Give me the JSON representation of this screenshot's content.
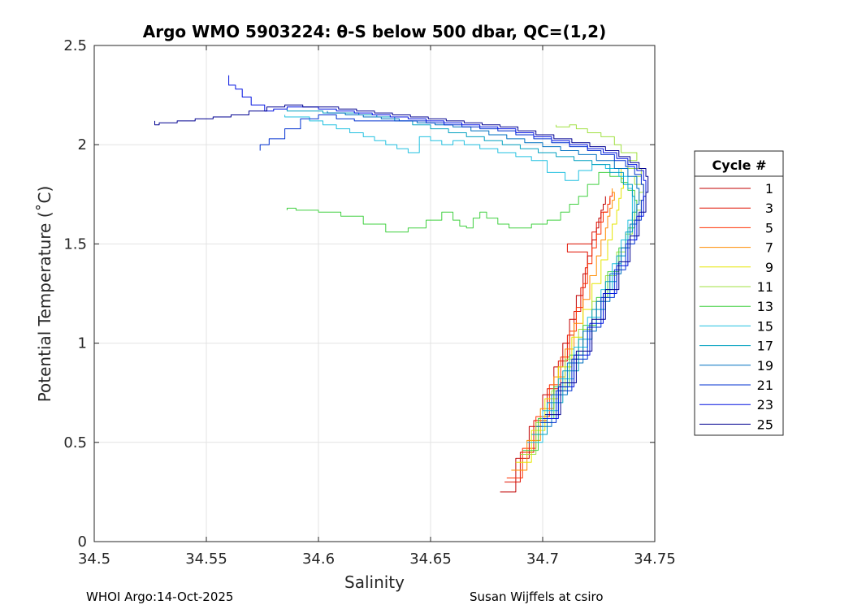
{
  "chart_data": {
    "type": "line",
    "title": "Argo WMO 5903224: θ-S below 500 dbar,  QC=(1,2)",
    "xlabel": "Salinity",
    "ylabel": "Potential Temperature (˚C)",
    "xlim": [
      34.5,
      34.75
    ],
    "ylim": [
      0,
      2.5
    ],
    "xticks": [
      34.5,
      34.55,
      34.6,
      34.65,
      34.7,
      34.75
    ],
    "xtick_labels": [
      "34.5",
      "34.55",
      "34.6",
      "34.65",
      "34.7",
      "34.75"
    ],
    "yticks": [
      0,
      0.5,
      1,
      1.5,
      2,
      2.5
    ],
    "ytick_labels": [
      "0",
      "0.5",
      "1",
      "1.5",
      "2",
      "2.5"
    ],
    "grid": true,
    "legend_title": "Cycle #",
    "legend_position": "outside-right",
    "series": [
      {
        "name": "1",
        "color": "#c00000",
        "x": [
          34.681,
          34.688,
          34.694,
          34.7,
          34.705,
          34.709,
          34.712,
          34.715,
          34.718,
          34.72,
          34.722,
          34.724,
          34.725,
          34.726,
          34.727,
          34.728,
          34.728
        ],
        "y": [
          0.25,
          0.42,
          0.58,
          0.74,
          0.88,
          1.0,
          1.12,
          1.24,
          1.35,
          1.44,
          1.52,
          1.58,
          1.63,
          1.67,
          1.7,
          1.72,
          1.74
        ]
      },
      {
        "name": "3",
        "color": "#e01000",
        "x": [
          34.683,
          34.69,
          34.696,
          34.702,
          34.707,
          34.711,
          34.714,
          34.717,
          34.719,
          34.72,
          34.711,
          34.722,
          34.724,
          34.726,
          34.729,
          34.73
        ],
        "y": [
          0.3,
          0.45,
          0.61,
          0.77,
          0.91,
          1.04,
          1.16,
          1.28,
          1.38,
          1.46,
          1.5,
          1.56,
          1.61,
          1.66,
          1.7,
          1.73
        ]
      },
      {
        "name": "5",
        "color": "#ff3000",
        "x": [
          34.684,
          34.691,
          34.697,
          34.703,
          34.708,
          34.712,
          34.715,
          34.718,
          34.72,
          34.722,
          34.724,
          34.726,
          34.727,
          34.729,
          34.73,
          34.731
        ],
        "y": [
          0.32,
          0.47,
          0.63,
          0.79,
          0.93,
          1.06,
          1.18,
          1.3,
          1.4,
          1.48,
          1.55,
          1.61,
          1.66,
          1.7,
          1.74,
          1.76
        ]
      },
      {
        "name": "7",
        "color": "#ff8c00",
        "x": [
          34.686,
          34.693,
          34.699,
          34.705,
          34.71,
          34.714,
          34.718,
          34.721,
          34.724,
          34.726,
          34.728,
          34.729,
          34.73,
          34.731,
          34.732,
          34.731
        ],
        "y": [
          0.36,
          0.51,
          0.67,
          0.83,
          0.97,
          1.1,
          1.22,
          1.34,
          1.44,
          1.52,
          1.58,
          1.64,
          1.68,
          1.72,
          1.76,
          1.78
        ]
      },
      {
        "name": "9",
        "color": "#e6e600",
        "x": [
          34.688,
          34.695,
          34.701,
          34.707,
          34.713,
          34.718,
          34.722,
          34.726,
          34.729,
          34.731,
          34.733,
          34.734,
          34.735,
          34.736,
          34.735
        ],
        "y": [
          0.4,
          0.56,
          0.72,
          0.88,
          1.03,
          1.17,
          1.3,
          1.42,
          1.52,
          1.6,
          1.67,
          1.73,
          1.78,
          1.83,
          1.88
        ]
      },
      {
        "name": "11",
        "color": "#a0e040",
        "x": [
          34.69,
          34.697,
          34.704,
          34.71,
          34.716,
          34.722,
          34.728,
          34.733,
          34.737,
          34.74,
          34.742,
          34.744,
          34.743,
          34.745,
          34.741,
          34.744,
          34.738,
          34.742,
          34.735,
          34.732,
          34.726,
          34.72,
          34.715,
          34.712,
          34.706
        ],
        "y": [
          0.44,
          0.6,
          0.76,
          0.92,
          1.07,
          1.21,
          1.34,
          1.46,
          1.55,
          1.62,
          1.67,
          1.72,
          1.76,
          1.8,
          1.84,
          1.88,
          1.92,
          1.96,
          2.0,
          2.04,
          2.06,
          2.08,
          2.1,
          2.09,
          2.1
        ]
      },
      {
        "name": "13",
        "color": "#40d040",
        "x": [
          34.691,
          34.698,
          34.705,
          34.712,
          34.718,
          34.724,
          34.729,
          34.734,
          34.738,
          34.741,
          34.742,
          34.741,
          34.738,
          34.735,
          34.73,
          34.725,
          34.72,
          34.716,
          34.712,
          34.708,
          34.702,
          34.695,
          34.69,
          34.685,
          34.68,
          34.675,
          34.672,
          34.669,
          34.666,
          34.663,
          34.66,
          34.655,
          34.648,
          34.64,
          34.63,
          34.62,
          34.61,
          34.6,
          34.59,
          34.586
        ],
        "y": [
          0.46,
          0.62,
          0.78,
          0.94,
          1.09,
          1.23,
          1.36,
          1.48,
          1.58,
          1.66,
          1.72,
          1.77,
          1.81,
          1.84,
          1.86,
          1.8,
          1.74,
          1.7,
          1.66,
          1.62,
          1.6,
          1.58,
          1.58,
          1.6,
          1.63,
          1.66,
          1.63,
          1.58,
          1.59,
          1.62,
          1.66,
          1.62,
          1.58,
          1.56,
          1.6,
          1.64,
          1.66,
          1.67,
          1.68,
          1.67
        ]
      },
      {
        "name": "15",
        "color": "#20c0e0",
        "x": [
          34.693,
          34.7,
          34.707,
          34.714,
          34.72,
          34.726,
          34.731,
          34.735,
          34.738,
          34.74,
          34.74,
          34.738,
          34.734,
          34.728,
          34.722,
          34.716,
          34.71,
          34.702,
          34.695,
          34.688,
          34.68,
          34.672,
          34.665,
          34.66,
          34.655,
          34.65,
          34.645,
          34.64,
          34.635,
          34.63,
          34.625,
          34.62,
          34.614,
          34.608,
          34.602,
          34.596,
          34.59,
          34.585
        ],
        "y": [
          0.5,
          0.66,
          0.82,
          0.98,
          1.13,
          1.27,
          1.4,
          1.52,
          1.62,
          1.7,
          1.78,
          1.84,
          1.88,
          1.9,
          1.87,
          1.82,
          1.86,
          1.92,
          1.94,
          1.96,
          1.98,
          2.0,
          2.02,
          2.0,
          2.02,
          2.04,
          1.96,
          1.98,
          2.0,
          2.02,
          2.04,
          2.06,
          2.08,
          2.1,
          2.12,
          2.14,
          2.14,
          2.15
        ]
      },
      {
        "name": "17",
        "color": "#00a0c0",
        "x": [
          34.695,
          34.702,
          34.709,
          34.716,
          34.722,
          34.728,
          34.733,
          34.737,
          34.74,
          34.741,
          34.74,
          34.736,
          34.73,
          34.722,
          34.714,
          34.706,
          34.698,
          34.69,
          34.682,
          34.674,
          34.666,
          34.658,
          34.65,
          34.642,
          34.634,
          34.626,
          34.618,
          34.61,
          34.602,
          34.594,
          34.586
        ],
        "y": [
          0.54,
          0.7,
          0.86,
          1.02,
          1.17,
          1.31,
          1.44,
          1.56,
          1.66,
          1.74,
          1.8,
          1.86,
          1.9,
          1.92,
          1.94,
          1.96,
          1.98,
          2.0,
          2.02,
          2.04,
          2.06,
          2.08,
          2.1,
          2.12,
          2.14,
          2.15,
          2.16,
          2.16,
          2.17,
          2.17,
          2.18
        ]
      },
      {
        "name": "19",
        "color": "#0070c0",
        "x": [
          34.697,
          34.704,
          34.711,
          34.718,
          34.724,
          34.73,
          34.735,
          34.739,
          34.742,
          34.743,
          34.742,
          34.738,
          34.732,
          34.724,
          34.716,
          34.708,
          34.7,
          34.692,
          34.684,
          34.676,
          34.668,
          34.66,
          34.652,
          34.644,
          34.636,
          34.628,
          34.62,
          34.612,
          34.604
        ],
        "y": [
          0.58,
          0.74,
          0.9,
          1.06,
          1.21,
          1.35,
          1.48,
          1.6,
          1.7,
          1.78,
          1.84,
          1.88,
          1.92,
          1.95,
          1.97,
          1.99,
          2.01,
          2.03,
          2.05,
          2.07,
          2.09,
          2.1,
          2.11,
          2.12,
          2.13,
          2.14,
          2.15,
          2.16,
          2.17
        ]
      },
      {
        "name": "21",
        "color": "#0030d0",
        "x": [
          34.699,
          34.706,
          34.713,
          34.72,
          34.726,
          34.732,
          34.737,
          34.741,
          34.744,
          34.745,
          34.744,
          34.741,
          34.737,
          34.732,
          34.726,
          34.72,
          34.712,
          34.704,
          34.696,
          34.688,
          34.68,
          34.672,
          34.664,
          34.656,
          34.648,
          34.64,
          34.632,
          34.624,
          34.616,
          34.608,
          34.6,
          34.592,
          34.585,
          34.578,
          34.574
        ],
        "y": [
          0.6,
          0.76,
          0.92,
          1.08,
          1.23,
          1.37,
          1.5,
          1.62,
          1.72,
          1.8,
          1.85,
          1.89,
          1.92,
          1.95,
          1.97,
          1.99,
          2.01,
          2.03,
          2.05,
          2.07,
          2.08,
          2.09,
          2.1,
          2.11,
          2.12,
          2.12,
          2.12,
          2.12,
          2.13,
          2.15,
          2.13,
          2.08,
          2.03,
          2.0,
          1.97
        ]
      },
      {
        "name": "23",
        "color": "#0010e0",
        "x": [
          34.7,
          34.707,
          34.714,
          34.721,
          34.727,
          34.733,
          34.738,
          34.742,
          34.745,
          34.746,
          34.745,
          34.742,
          34.738,
          34.733,
          34.727,
          34.72,
          34.712,
          34.704,
          34.696,
          34.688,
          34.68,
          34.672,
          34.664,
          34.656,
          34.648,
          34.64,
          34.632,
          34.624,
          34.616,
          34.608,
          34.6,
          34.592,
          34.586,
          34.58,
          34.576,
          34.57,
          34.566,
          34.563,
          34.56
        ],
        "y": [
          0.62,
          0.78,
          0.94,
          1.1,
          1.25,
          1.39,
          1.52,
          1.64,
          1.74,
          1.82,
          1.87,
          1.9,
          1.93,
          1.96,
          1.98,
          2.0,
          2.02,
          2.04,
          2.06,
          2.08,
          2.09,
          2.1,
          2.11,
          2.12,
          2.13,
          2.14,
          2.15,
          2.16,
          2.17,
          2.18,
          2.19,
          2.19,
          2.18,
          2.17,
          2.2,
          2.24,
          2.28,
          2.3,
          2.35
        ]
      },
      {
        "name": "25",
        "color": "#000090",
        "x": [
          34.701,
          34.708,
          34.715,
          34.722,
          34.728,
          34.734,
          34.739,
          34.743,
          34.746,
          34.747,
          34.746,
          34.743,
          34.739,
          34.734,
          34.728,
          34.721,
          34.713,
          34.705,
          34.697,
          34.689,
          34.681,
          34.673,
          34.665,
          34.657,
          34.649,
          34.641,
          34.633,
          34.625,
          34.617,
          34.609,
          34.601,
          34.593,
          34.585,
          34.577,
          34.569,
          34.561,
          34.553,
          34.545,
          34.537,
          34.529,
          34.527
        ],
        "y": [
          0.64,
          0.8,
          0.96,
          1.12,
          1.27,
          1.41,
          1.54,
          1.66,
          1.76,
          1.84,
          1.88,
          1.91,
          1.94,
          1.97,
          1.99,
          2.01,
          2.03,
          2.05,
          2.07,
          2.09,
          2.1,
          2.11,
          2.12,
          2.13,
          2.14,
          2.15,
          2.16,
          2.17,
          2.18,
          2.19,
          2.19,
          2.2,
          2.19,
          2.17,
          2.15,
          2.14,
          2.13,
          2.12,
          2.11,
          2.1,
          2.12
        ]
      }
    ]
  },
  "footer": {
    "left": "WHOI Argo:14-Oct-2025",
    "right": "Susan Wijffels at csiro"
  }
}
